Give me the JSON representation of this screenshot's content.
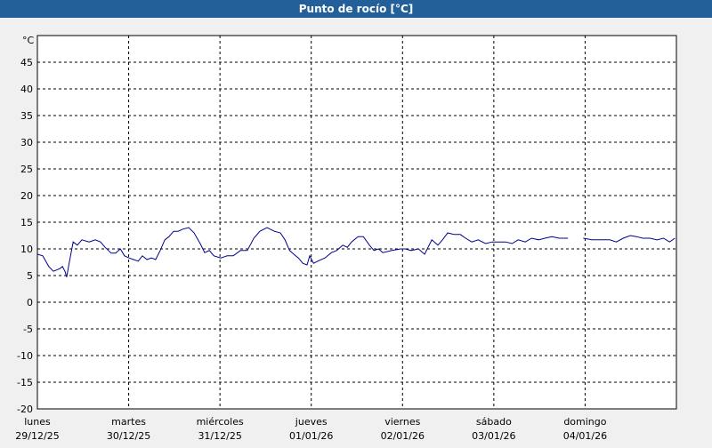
{
  "chart_data": {
    "type": "line",
    "title": "Punto de rocío [°C]",
    "y_unit": "°C",
    "x": [
      0,
      1.4,
      3,
      4.2,
      5.9,
      6.6,
      7.3,
      7.7,
      8.2,
      9.4,
      10.5,
      11.7,
      13.6,
      15.2,
      16.6,
      17.8,
      19.4,
      20.6,
      21.8,
      22.9,
      24.1,
      25.3,
      26.5,
      27.6,
      28.8,
      30,
      31.1,
      32.3,
      33.5,
      34.6,
      35.8,
      37,
      38.2,
      39.8,
      41.2,
      42.8,
      44,
      45.2,
      46.4,
      48.2,
      49.9,
      51.5,
      53.4,
      55.2,
      56.9,
      58.5,
      60.4,
      62.3,
      63.9,
      65.1,
      66.3,
      67.4,
      68.6,
      69.8,
      70.9,
      71.6,
      72.6,
      74,
      75.6,
      77.3,
      78.7,
      80.3,
      81.5,
      82.6,
      84.3,
      85.7,
      87.3,
      88.5,
      89.7,
      90.8,
      93.2,
      95.5,
      96.7,
      98.3,
      100.2,
      101.8,
      103.7,
      105.3,
      106.5,
      107.9,
      109.6,
      111.2,
      112.6,
      114.2,
      115.9,
      117.8,
      119.6,
      121.3,
      123.1,
      124.8,
      126.4,
      128.3,
      129.9,
      131.8,
      133.4,
      135.3,
      137.2,
      139.5,
      141,
      143.5,
      145.8,
      148.2,
      150.5,
      152.2,
      154,
      155.9,
      157.5,
      159.2,
      161.1,
      162.9,
      164.6,
      166.2,
      167.6
    ],
    "series": [
      {
        "color": "#00008b",
        "values": [
          9,
          8.7,
          6.7,
          5.8,
          6.3,
          6.7,
          5.7,
          4.7,
          6.7,
          11.3,
          10.7,
          11.7,
          11.3,
          11.7,
          11.3,
          10.3,
          9.2,
          9.2,
          10,
          8.7,
          8.3,
          8,
          7.7,
          8.7,
          8,
          8.3,
          8,
          9.7,
          11.7,
          12.3,
          13.3,
          13.3,
          13.7,
          14,
          13,
          11,
          9.3,
          9.7,
          8.7,
          8.3,
          8.7,
          8.7,
          9.7,
          9.7,
          12,
          13.3,
          14,
          13.3,
          13,
          11.7,
          9.7,
          9,
          8.3,
          7.3,
          7,
          8.7,
          7.3,
          7.8,
          8.3,
          9.3,
          9.7,
          10.7,
          10.3,
          11.3,
          12.3,
          12.3,
          10.7,
          9.7,
          10,
          9.3,
          9.7,
          10,
          10,
          9.7,
          10,
          9,
          11.7,
          10.7,
          11.7,
          13,
          12.7,
          12.7,
          12,
          11.3,
          11.7,
          11,
          11.3,
          11.3,
          11.3,
          11,
          11.7,
          11.3,
          12,
          11.7,
          12,
          12.3,
          12,
          12,
          null,
          12,
          11.7,
          11.7,
          11.7,
          11.3,
          12,
          12.5,
          12.3,
          12,
          12,
          11.7,
          12,
          11.3,
          12
        ]
      }
    ],
    "xlim": [
      0,
      168
    ],
    "xticks": [
      {
        "value": 0,
        "label": [
          "lunes",
          "29/12/25"
        ]
      },
      {
        "value": 24,
        "label": [
          "martes",
          "30/12/25"
        ]
      },
      {
        "value": 48,
        "label": [
          "miércoles",
          "31/12/25"
        ]
      },
      {
        "value": 72,
        "label": [
          "jueves",
          "01/01/26"
        ]
      },
      {
        "value": 96,
        "label": [
          "viernes",
          "02/01/26"
        ]
      },
      {
        "value": 120,
        "label": [
          "sábado",
          "03/01/26"
        ]
      },
      {
        "value": 144,
        "label": [
          "domingo",
          "04/01/26"
        ]
      }
    ],
    "ylim": [
      -20,
      50
    ],
    "yticks": [
      -20,
      -15,
      -10,
      -5,
      0,
      5,
      10,
      15,
      20,
      25,
      30,
      35,
      40,
      45
    ],
    "grid": true
  }
}
